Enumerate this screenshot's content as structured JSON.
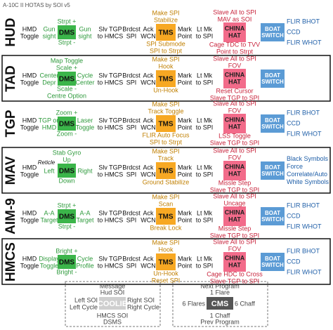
{
  "title": "A-10C II HOTAS by SOI v5",
  "switch_labels": {
    "dms": "DMS",
    "tms": "TMS",
    "china": [
      "CHINA",
      "HAT"
    ],
    "boat": [
      "BOAT",
      "SWITCH"
    ]
  },
  "rows": [
    {
      "soi": "HUD",
      "boxed": false,
      "far_left": [
        "HMD",
        "Toggle"
      ],
      "dms_left": [
        "Gun",
        "sight"
      ],
      "dms_up": [
        "Strpt +"
      ],
      "dms_down": [
        "Strpt -"
      ],
      "dms_right": [
        "Gun",
        "sight"
      ],
      "slv": [
        "Slv TGP",
        "to HMCS"
      ],
      "brdcst": [
        "Brdcst",
        "SPI"
      ],
      "ack": [
        "Ack",
        "WCN"
      ],
      "tms_up": [
        "Make SPI",
        "Stabilize"
      ],
      "tms_down": [
        "SPI Submode",
        "SPI to Strpt"
      ],
      "mark": [
        "Mark",
        "Point"
      ],
      "ltmk": [
        "Lt Mk",
        "to SPI"
      ],
      "china_up": [
        "Slave All to SPI",
        "MAV as SOI"
      ],
      "china_down": [
        "Cage TDC to TVV",
        "Point to Strpt"
      ],
      "boat": [
        "FLIR BHOT",
        "CCD",
        "FLIR WHOT"
      ]
    },
    {
      "soi": "TAD",
      "boxed": true,
      "far_left": [
        "HMD",
        "Toggle"
      ],
      "dms_left": [
        "Center",
        "Depr"
      ],
      "dms_up": [
        "Map Toggle",
        "Scale +"
      ],
      "dms_down": [
        "Scale -",
        "Centre Option"
      ],
      "dms_right": [
        "Cycle",
        "Center"
      ],
      "slv": [
        "Slv TGP",
        "to HMCS"
      ],
      "brdcst": [
        "Brdcst",
        "SPI"
      ],
      "ack": [
        "Ack",
        "WCN"
      ],
      "tms_up": [
        "Make SPI",
        "Hook"
      ],
      "tms_down": [
        "Un-Hook"
      ],
      "mark": [
        "Mark",
        "Point"
      ],
      "ltmk": [
        "Lt Mk",
        "to SPI"
      ],
      "china_up": [
        "Slave All to SPI",
        "FOV"
      ],
      "china_down": [
        "Reset Cursor",
        "Slave TGP to SPI"
      ]
    },
    {
      "soi": "TGP",
      "boxed": false,
      "far_left": [
        "HMD",
        "Toggle"
      ],
      "dms_left": [
        "TGP on",
        "HMD"
      ],
      "dms_up": [
        "Zoom +"
      ],
      "dms_down": [
        "Zoom -"
      ],
      "dms_right": [
        "Laser",
        "Toggle"
      ],
      "slv": [
        "Slv TGP",
        "to HMCS"
      ],
      "brdcst": [
        "Brdcst",
        "SPI"
      ],
      "ack": [
        "Ack",
        "WCN"
      ],
      "tms_up": [
        "Make SPI",
        "Track Toggle"
      ],
      "tms_down": [
        "FLIR Auto Focus",
        "SPI to Strpt"
      ],
      "mark": [
        "Mark",
        "Point"
      ],
      "ltmk": [
        "Lt Mk",
        "to SPI"
      ],
      "china_up": [
        "Slave All to SPI",
        "FOV"
      ],
      "china_down": [
        "LSS Toggle",
        "Slave TGP to SPI"
      ],
      "boat": [
        "FLIR BHOT",
        "CCD",
        "FLIR WHOT"
      ]
    },
    {
      "soi": "MAV",
      "boxed": true,
      "far_left": [
        "HMD",
        "Toggle"
      ],
      "dms_note": "Reticle",
      "dms_left": [
        "Left"
      ],
      "dms_up": [
        "Stab Gyro",
        "Up"
      ],
      "dms_down": [
        "Down"
      ],
      "dms_right": [
        "Right"
      ],
      "slv": [
        "Slv TGP",
        "to HMCS"
      ],
      "brdcst": [
        "Brdcst",
        "SPI"
      ],
      "ack": [
        "Ack",
        "WCN"
      ],
      "tms_up": [
        "Make SPI",
        "Track"
      ],
      "tms_down": [
        "Ground Stabilize"
      ],
      "mark": [
        "Mark",
        "Point"
      ],
      "ltmk": [
        "Lt Mk",
        "to SPI"
      ],
      "china_up": [
        "Slave All to SPI",
        "FOV"
      ],
      "china_down": [
        "Missle Step",
        "Slave TGP to SPI"
      ],
      "boat": [
        "Black Symbols",
        "Force",
        "Correlate/Auto",
        "White Symbols"
      ]
    },
    {
      "soi": "AIM-9",
      "boxed": false,
      "far_left": [
        "HMD",
        "Toggle"
      ],
      "dms_left": [
        "A-A",
        "Target"
      ],
      "dms_up": [
        "Strpt +"
      ],
      "dms_down": [
        "Strpt -"
      ],
      "dms_right": [
        "A-A",
        "Target"
      ],
      "slv": [
        "Slv TGP",
        "to HMCS"
      ],
      "brdcst": [
        "Brdcst",
        "SPI"
      ],
      "ack": [
        "Ack",
        "WCN"
      ],
      "tms_up": [
        "Make SPI",
        "Scan"
      ],
      "tms_down": [
        "Break Lock"
      ],
      "mark": [
        "Mark",
        "Point"
      ],
      "ltmk": [
        "Lt Mk",
        "to SPI"
      ],
      "china_up": [
        "Slave All to SPI",
        "Uncage"
      ],
      "china_down": [
        "Missle Step",
        "Slave TGP to SPI"
      ],
      "boat": [
        "FLIR BHOT",
        "CCD",
        "FLIR WHOT"
      ]
    },
    {
      "soi": "HMCS",
      "boxed": true,
      "far_left": [
        "HMD",
        "Toggle"
      ],
      "dms_left": [
        "Display",
        "Toggle"
      ],
      "dms_up": [
        "Bright +"
      ],
      "dms_down": [
        "Bright -"
      ],
      "dms_right": [
        "Cycle",
        "Profile"
      ],
      "slv": [
        "Slv TGP",
        "to HMCS"
      ],
      "brdcst": [
        "Brdcst",
        "SPI"
      ],
      "ack": [
        "Ack",
        "WCN"
      ],
      "tms_up": [
        "Make SPI",
        "Hook"
      ],
      "tms_down": [
        "Un-Hook",
        "Reset SPI"
      ],
      "mark": [
        "Mark",
        "Point"
      ],
      "ltmk": [
        "Lt Mk",
        "to SPI"
      ],
      "china_up": [
        "Slave All to SPI",
        "FOV"
      ],
      "china_down": [
        "Cage HDC to Cross",
        "Slave TGP to SPI"
      ],
      "boat": [
        "FLIR BHOT",
        "CCD",
        "FLIR WHOT"
      ]
    }
  ],
  "coolie": {
    "label": "COOLIE",
    "up": [
      "Message",
      "Hud SOI"
    ],
    "left": [
      "Left SOI",
      "Left Cycle"
    ],
    "right": [
      "Right SOI",
      "Right Cycle"
    ],
    "down": [
      "HMCS SOI",
      "DSMS"
    ]
  },
  "cms": {
    "label": "CMS",
    "up": [
      "Next Program",
      "1 Flare"
    ],
    "left": [
      "6 Flares"
    ],
    "right": [
      "6 Chaff"
    ],
    "down": [
      "1 Chaff",
      "Prev Program"
    ]
  }
}
